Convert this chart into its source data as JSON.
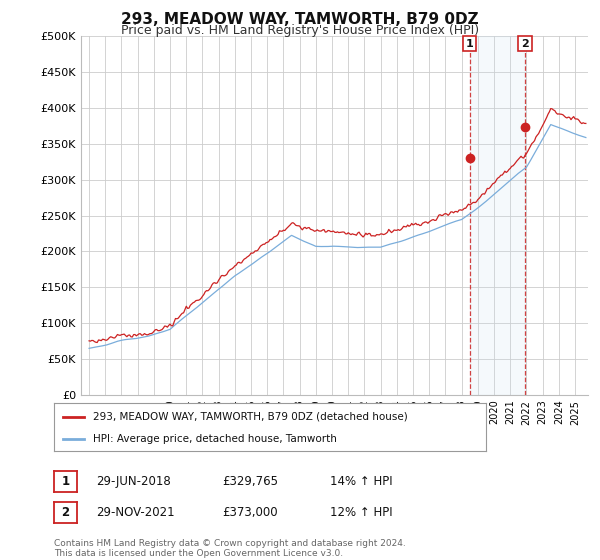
{
  "title": "293, MEADOW WAY, TAMWORTH, B79 0DZ",
  "subtitle": "Price paid vs. HM Land Registry's House Price Index (HPI)",
  "ylabel_ticks": [
    "£0",
    "£50K",
    "£100K",
    "£150K",
    "£200K",
    "£250K",
    "£300K",
    "£350K",
    "£400K",
    "£450K",
    "£500K"
  ],
  "ytick_values": [
    0,
    50000,
    100000,
    150000,
    200000,
    250000,
    300000,
    350000,
    400000,
    450000,
    500000
  ],
  "xlim_start": 1994.5,
  "xlim_end": 2025.8,
  "ylim": [
    0,
    500000
  ],
  "line_color_hpi": "#7aaddb",
  "line_color_price": "#cc2222",
  "shade_color": "#cce0f0",
  "transaction1_date": 2018.49,
  "transaction1_value": 329765,
  "transaction2_date": 2021.91,
  "transaction2_value": 373000,
  "legend_label1": "293, MEADOW WAY, TAMWORTH, B79 0DZ (detached house)",
  "legend_label2": "HPI: Average price, detached house, Tamworth",
  "table_row1": [
    "1",
    "29-JUN-2018",
    "£329,765",
    "14% ↑ HPI"
  ],
  "table_row2": [
    "2",
    "29-NOV-2021",
    "£373,000",
    "12% ↑ HPI"
  ],
  "footnote": "Contains HM Land Registry data © Crown copyright and database right 2024.\nThis data is licensed under the Open Government Licence v3.0.",
  "background_color": "#ffffff",
  "plot_bg_color": "#ffffff",
  "grid_color": "#cccccc",
  "title_fontsize": 11,
  "subtitle_fontsize": 9,
  "tick_fontsize": 8
}
